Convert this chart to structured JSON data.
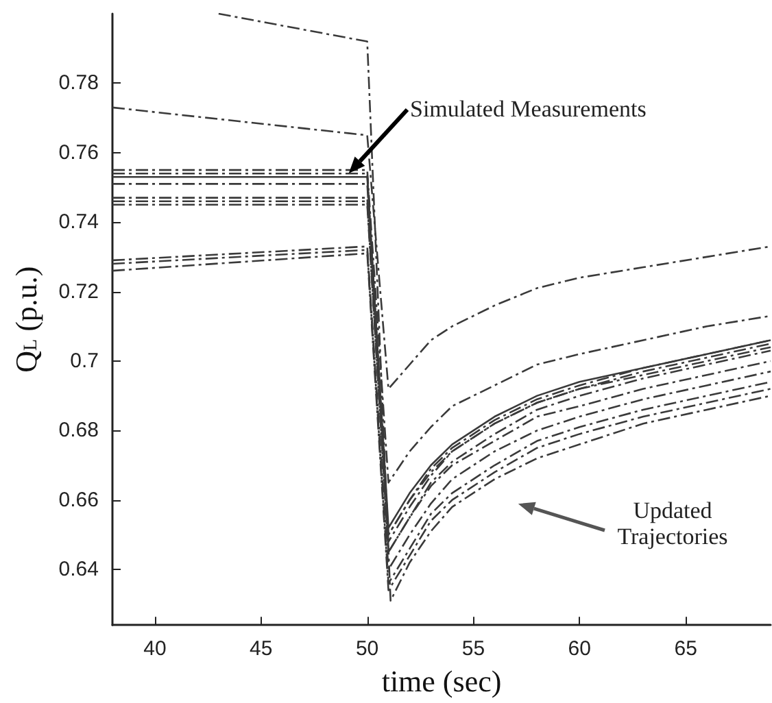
{
  "chart_data": {
    "type": "line",
    "xlabel": "time (sec)",
    "ylabel": "Q$_{L}$ (p.u.)",
    "xlim": [
      38,
      69
    ],
    "xticks": [
      40,
      45,
      50,
      55,
      60,
      65
    ],
    "ylim": [
      0.624,
      0.8
    ],
    "yticks": [
      0.64,
      0.66,
      0.68,
      0.7,
      0.72,
      0.74,
      0.76,
      0.78
    ],
    "grid": false,
    "marker": "none",
    "line_style": "dashed",
    "annotations": [
      "Simulated Measurements",
      "Updated Trajectories"
    ],
    "series": [
      {
        "color": "#3a3a3a",
        "x": [
          43,
          50,
          51.1,
          52,
          53,
          54,
          56,
          58,
          60,
          63,
          66,
          69
        ],
        "values": [
          0.8,
          0.792,
          0.631,
          0.642,
          0.651,
          0.658,
          0.666,
          0.672,
          0.676,
          0.682,
          0.686,
          0.69
        ]
      },
      {
        "color": "#3a3a3a",
        "x": [
          38,
          50,
          51,
          52,
          53,
          54,
          56,
          58,
          60,
          63,
          66,
          69
        ],
        "values": [
          0.773,
          0.765,
          0.692,
          0.699,
          0.706,
          0.71,
          0.716,
          0.721,
          0.724,
          0.727,
          0.73,
          0.733
        ]
      },
      {
        "color": "#3a3a3a",
        "x": [
          38,
          50,
          51,
          52,
          53,
          54,
          56,
          58,
          60,
          63,
          66,
          69
        ],
        "values": [
          0.755,
          0.755,
          0.665,
          0.674,
          0.681,
          0.687,
          0.693,
          0.699,
          0.702,
          0.706,
          0.71,
          0.713
        ]
      },
      {
        "color": "#3a3a3a",
        "x": [
          38,
          50,
          51,
          52,
          53,
          54,
          56,
          58,
          60,
          63,
          66,
          69
        ],
        "values": [
          0.754,
          0.754,
          0.65,
          0.66,
          0.669,
          0.675,
          0.683,
          0.689,
          0.693,
          0.698,
          0.702,
          0.706
        ]
      },
      {
        "color": "#3a3a3a",
        "line_style": "solid",
        "x": [
          38,
          50,
          51,
          52,
          53,
          54,
          56,
          58,
          60,
          63,
          66,
          69
        ],
        "values": [
          0.753,
          0.753,
          0.652,
          0.662,
          0.67,
          0.676,
          0.684,
          0.69,
          0.694,
          0.698,
          0.702,
          0.706
        ]
      },
      {
        "color": "#3a3a3a",
        "x": [
          38,
          50,
          51,
          52,
          53,
          54,
          56,
          58,
          60,
          63,
          66,
          69
        ],
        "values": [
          0.751,
          0.751,
          0.648,
          0.658,
          0.667,
          0.674,
          0.682,
          0.688,
          0.692,
          0.697,
          0.701,
          0.705
        ]
      },
      {
        "color": "#3a3a3a",
        "x": [
          38,
          50,
          51,
          52,
          53,
          54,
          56,
          58,
          60,
          63,
          66,
          69
        ],
        "values": [
          0.747,
          0.747,
          0.65,
          0.66,
          0.668,
          0.674,
          0.682,
          0.688,
          0.692,
          0.696,
          0.7,
          0.704
        ]
      },
      {
        "color": "#3a3a3a",
        "x": [
          38,
          50,
          51,
          52,
          53,
          54,
          56,
          58,
          60,
          63,
          66,
          69
        ],
        "values": [
          0.746,
          0.746,
          0.645,
          0.655,
          0.665,
          0.671,
          0.679,
          0.686,
          0.69,
          0.695,
          0.699,
          0.703
        ]
      },
      {
        "color": "#3a3a3a",
        "x": [
          38,
          50,
          51,
          52,
          53,
          54,
          56,
          58,
          60,
          63,
          66,
          69
        ],
        "values": [
          0.745,
          0.745,
          0.645,
          0.655,
          0.664,
          0.67,
          0.677,
          0.684,
          0.687,
          0.692,
          0.696,
          0.7
        ]
      },
      {
        "color": "#3a3a3a",
        "x": [
          38,
          50,
          51,
          52,
          53,
          54,
          56,
          58,
          60,
          63,
          66,
          69
        ],
        "values": [
          0.729,
          0.733,
          0.64,
          0.65,
          0.659,
          0.666,
          0.674,
          0.68,
          0.684,
          0.689,
          0.693,
          0.697
        ]
      },
      {
        "color": "#3a3a3a",
        "x": [
          38,
          50,
          51,
          52,
          53,
          54,
          56,
          58,
          60,
          63,
          66,
          69
        ],
        "values": [
          0.728,
          0.732,
          0.636,
          0.646,
          0.656,
          0.662,
          0.67,
          0.677,
          0.681,
          0.686,
          0.69,
          0.694
        ]
      },
      {
        "color": "#3a3a3a",
        "x": [
          38,
          50,
          51,
          52,
          53,
          54,
          56,
          58,
          60,
          63,
          66,
          69
        ],
        "values": [
          0.726,
          0.731,
          0.634,
          0.644,
          0.654,
          0.66,
          0.668,
          0.675,
          0.679,
          0.684,
          0.688,
          0.692
        ]
      }
    ]
  }
}
